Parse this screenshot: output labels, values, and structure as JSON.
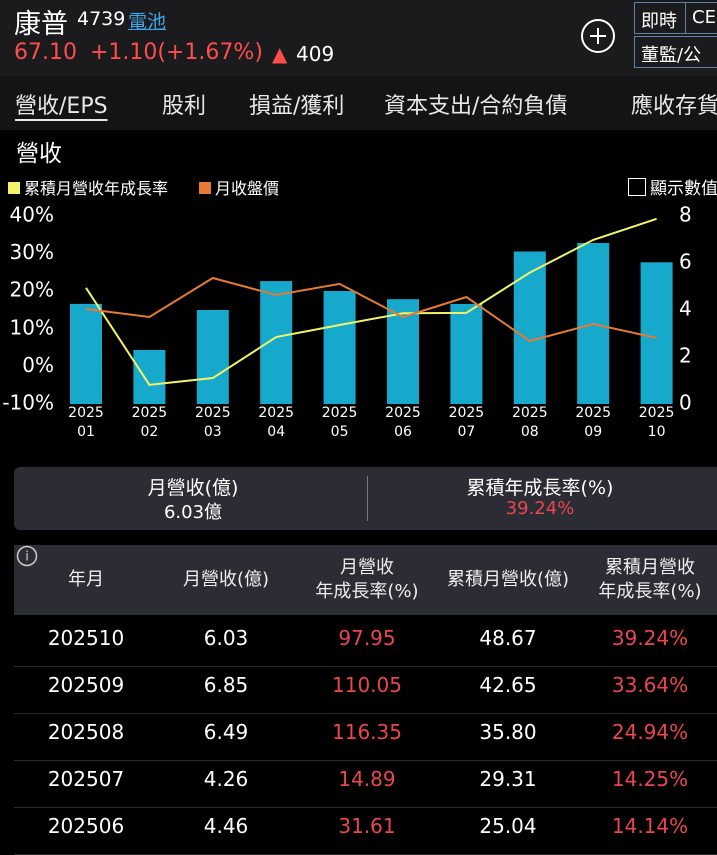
{
  "header": {
    "name": "康普",
    "code": "4739",
    "industry": "電池",
    "price": "67.10",
    "change": "+1.10(+1.67%)",
    "arrow": "▲",
    "volume": "409",
    "buttons": [
      "即時",
      "CE",
      "董監/公司"
    ]
  },
  "tabs": [
    "營收/EPS",
    "股利",
    "損益/獲利",
    "資本支出/合約負債",
    "應收存貨"
  ],
  "section_title": "營收",
  "show_values": "顯示數值",
  "chart_data": {
    "type": "bar-line",
    "categories": [
      [
        "2025",
        "01"
      ],
      [
        "2025",
        "02"
      ],
      [
        "2025",
        "03"
      ],
      [
        "2025",
        "04"
      ],
      [
        "2025",
        "05"
      ],
      [
        "2025",
        "06"
      ],
      [
        "2025",
        "07"
      ],
      [
        "2025",
        "08"
      ],
      [
        "2025",
        "09"
      ],
      [
        "2025",
        "10"
      ]
    ],
    "series": [
      {
        "name": "月營收",
        "type": "bar",
        "axis": "y2",
        "color": "#17a9cc",
        "values": [
          4.26,
          2.3,
          4.0,
          5.23,
          4.81,
          4.46,
          4.26,
          6.49,
          6.85,
          6.03
        ]
      },
      {
        "name": "累積月營收年成長率",
        "type": "line",
        "color": "#f3f36a",
        "values": [
          20.9,
          -4.9,
          -3.1,
          7.8,
          11.0,
          14.14,
          14.25,
          24.94,
          33.64,
          39.24
        ]
      },
      {
        "name": "月收盤價",
        "type": "line",
        "axis": "y3",
        "color": "#e47a34",
        "values": [
          96.5,
          88.4,
          128,
          110.7,
          122,
          88.4,
          108.7,
          64,
          81.3,
          67.1
        ]
      }
    ],
    "ylim": [
      -10,
      40
    ],
    "yticks": [
      {
        "value": 40,
        "label": "40%"
      },
      {
        "value": 30,
        "label": "30%"
      },
      {
        "value": 20,
        "label": "20%"
      },
      {
        "value": 10,
        "label": "10%"
      },
      {
        "value": 0,
        "label": "0%"
      },
      {
        "value": -10,
        "label": "-10%"
      }
    ],
    "y2lim": [
      0,
      8
    ],
    "y2ticks": [
      8,
      6,
      4,
      2,
      0
    ],
    "y3lim": [
      0,
      191
    ],
    "legend": "top-left",
    "grid": false
  },
  "summary": [
    {
      "label": "月營收(億)",
      "value": "6.03億"
    },
    {
      "label": "累積年成長率(%)",
      "value": "39.24%"
    }
  ],
  "table": {
    "headers": [
      [
        "年月"
      ],
      [
        "月營收(億)"
      ],
      [
        "月營收",
        "年成長率(%)"
      ],
      [
        "累積月營收(億)"
      ],
      [
        "累積月營收",
        "年成長率(%)"
      ]
    ],
    "rows": [
      [
        "202510",
        "6.03",
        "97.95",
        "48.67",
        "39.24%"
      ],
      [
        "202509",
        "6.85",
        "110.05",
        "42.65",
        "33.64%"
      ],
      [
        "202508",
        "6.49",
        "116.35",
        "35.80",
        "24.94%"
      ],
      [
        "202507",
        "4.26",
        "14.89",
        "29.31",
        "14.25%"
      ],
      [
        "202506",
        "4.46",
        "31.61",
        "25.04",
        "14.14%"
      ]
    ]
  }
}
